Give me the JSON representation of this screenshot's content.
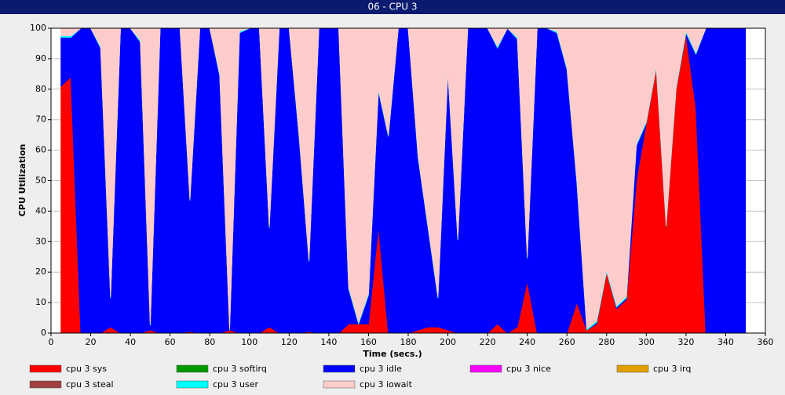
{
  "chart_data": {
    "type": "stacked_area",
    "title": "06 - CPU 3",
    "x_label": "Time (secs.)",
    "y_label": "CPU Utilization",
    "x": [
      5,
      10,
      15,
      20,
      25,
      30,
      35,
      40,
      45,
      50,
      55,
      60,
      65,
      70,
      75,
      80,
      85,
      90,
      95,
      100,
      105,
      110,
      115,
      120,
      125,
      130,
      135,
      140,
      145,
      150,
      155,
      160,
      165,
      170,
      175,
      180,
      185,
      190,
      195,
      200,
      205,
      210,
      215,
      220,
      225,
      230,
      235,
      240,
      245,
      250,
      255,
      260,
      265,
      270,
      275,
      280,
      285,
      290,
      295,
      300,
      305,
      310,
      315,
      320,
      325,
      330,
      335,
      340,
      345,
      350
    ],
    "xlim": [
      0,
      360
    ],
    "xticks": [
      0,
      20,
      40,
      60,
      80,
      100,
      120,
      140,
      160,
      180,
      200,
      220,
      240,
      260,
      280,
      300,
      320,
      340,
      360
    ],
    "ylim": [
      0,
      100
    ],
    "yticks": [
      0,
      10,
      20,
      30,
      40,
      50,
      60,
      70,
      80,
      90,
      100
    ],
    "grid": true,
    "series": [
      {
        "name": "cpu 3 sys",
        "color": "#ff0000",
        "values": [
          81,
          84,
          0,
          0,
          0,
          2,
          0,
          0,
          0,
          1,
          0,
          0,
          0,
          0.5,
          0,
          0,
          0,
          1,
          0,
          0,
          0,
          2,
          0,
          0,
          0,
          0.5,
          0,
          0,
          0,
          3,
          3,
          3,
          35,
          0,
          0,
          0,
          1,
          2,
          2,
          1,
          0,
          0,
          0,
          0,
          3,
          0,
          2,
          17,
          0,
          0,
          0,
          0,
          10,
          1,
          3,
          20,
          8,
          11,
          50,
          69,
          87,
          35,
          80,
          98,
          74,
          0,
          0,
          0,
          0,
          0
        ]
      },
      {
        "name": "cpu 3 softirq",
        "color": "#009900",
        "values": [
          0,
          0,
          0,
          0,
          0,
          0,
          0,
          0,
          0,
          0,
          0,
          0,
          0,
          0,
          0,
          0,
          0,
          0,
          0,
          0,
          0,
          0,
          0,
          0,
          0,
          0,
          0,
          0,
          0,
          0,
          0,
          0,
          0,
          0,
          0,
          0,
          0,
          0,
          0,
          0,
          0,
          0,
          0,
          0,
          0,
          0,
          0,
          0,
          0,
          0,
          0,
          0,
          0,
          0,
          0,
          0,
          0,
          0,
          0,
          0,
          0,
          0,
          0,
          0,
          0,
          0,
          0,
          0,
          0,
          0
        ]
      },
      {
        "name": "cpu 3 idle",
        "color": "#0000ff",
        "values": [
          16,
          13,
          100,
          100,
          93.5,
          9.5,
          100,
          100,
          95.5,
          1.5,
          100,
          100,
          100,
          43,
          100,
          100,
          84.5,
          0,
          98.5,
          100,
          100,
          32.5,
          100,
          100,
          64.5,
          23,
          100,
          100,
          100,
          11.5,
          0,
          9.5,
          44.5,
          64.5,
          100,
          100,
          56.5,
          32.5,
          9.5,
          84.5,
          30.5,
          100,
          100,
          100,
          90.5,
          100,
          94.5,
          7.5,
          100,
          100,
          98.5,
          86.5,
          39.5,
          0,
          0.5,
          0,
          0.5,
          0.5,
          11.5,
          0,
          0,
          0,
          0,
          0.5,
          17.5,
          100,
          100,
          100,
          100,
          100
        ]
      },
      {
        "name": "cpu 3 nice",
        "color": "#ff00ff",
        "values": [
          0,
          0,
          0,
          0,
          0,
          0,
          0,
          0,
          0,
          0,
          0,
          0,
          0,
          0,
          0,
          0,
          0,
          0,
          0,
          0,
          0,
          0,
          0,
          0,
          0,
          0,
          0,
          0,
          0,
          0,
          0,
          0,
          0,
          0,
          0,
          0,
          0,
          0,
          0,
          0,
          0,
          0,
          0,
          0,
          0,
          0,
          0,
          0,
          0,
          0,
          0,
          0,
          0,
          0,
          0,
          0,
          0,
          0,
          0,
          0,
          0,
          0,
          0,
          0,
          0,
          0,
          0,
          0,
          0,
          0
        ]
      },
      {
        "name": "cpu 3 irq",
        "color": "#e0a000",
        "values": [
          0,
          0,
          0,
          0,
          0,
          0,
          0,
          0,
          0,
          0,
          0,
          0,
          0,
          0,
          0,
          0,
          0,
          0,
          0,
          0,
          0,
          0,
          0,
          0,
          0,
          0,
          0,
          0,
          0,
          0,
          0,
          0,
          0,
          0,
          0,
          0,
          0,
          0,
          0,
          0,
          0,
          0,
          0,
          0,
          0,
          0,
          0,
          0,
          0,
          0,
          0,
          0,
          0,
          0,
          0,
          0,
          0,
          0,
          0,
          0,
          0,
          0,
          0,
          0,
          0,
          0,
          0,
          0,
          0,
          0
        ]
      },
      {
        "name": "cpu 3 steal",
        "color": "#a04040",
        "values": [
          0,
          0,
          0,
          0,
          0,
          0,
          0,
          0,
          0,
          0,
          0,
          0,
          0,
          0,
          0,
          0,
          0,
          0,
          0,
          0,
          0,
          0,
          0,
          0,
          0,
          0,
          0,
          0,
          0,
          0,
          0,
          0,
          0,
          0,
          0,
          0,
          0,
          0,
          0,
          0,
          0,
          0,
          0,
          0,
          0,
          0,
          0,
          0,
          0,
          0,
          0,
          0,
          0,
          0,
          0,
          0,
          0,
          0,
          0,
          0,
          0,
          0,
          0,
          0,
          0,
          0,
          0,
          0,
          0,
          0
        ]
      },
      {
        "name": "cpu 3 user",
        "color": "#00ffff",
        "values": [
          0.5,
          0.5,
          0,
          0,
          0.5,
          0.5,
          0,
          0,
          0.5,
          0.5,
          0,
          0,
          0,
          0.5,
          0,
          0,
          0.5,
          0.5,
          0.5,
          0,
          0,
          0.5,
          0,
          0,
          0.5,
          0.5,
          0,
          0,
          0,
          0.5,
          0.5,
          0.5,
          0.5,
          0.5,
          0,
          0,
          0.5,
          0.5,
          0.5,
          0.5,
          0.5,
          0,
          0,
          0,
          0.5,
          0,
          0.5,
          0.5,
          0,
          0,
          0.5,
          0.5,
          0.5,
          0.5,
          0.5,
          0.5,
          0.5,
          0.5,
          0.5,
          0.5,
          0.5,
          0.5,
          0.5,
          0.5,
          0.5,
          0,
          0,
          0,
          0,
          0
        ]
      },
      {
        "name": "cpu 3 iowait",
        "color": "#ffcccc",
        "values": [
          2.5,
          2.5,
          0,
          0,
          6,
          88,
          0,
          0,
          4,
          97,
          0,
          0,
          0,
          56,
          0,
          0,
          15,
          98.5,
          1,
          0,
          0,
          65,
          0,
          0,
          35,
          76,
          0,
          0,
          0,
          85,
          96.5,
          87,
          20,
          35,
          0,
          0,
          42,
          65,
          88,
          14,
          69,
          0,
          0,
          0,
          6,
          0,
          3,
          75,
          0,
          0,
          1,
          13,
          50,
          98.5,
          96,
          79.5,
          91,
          88,
          38,
          30.5,
          12.5,
          64.5,
          19.5,
          1,
          8,
          0,
          0,
          0,
          0,
          0
        ]
      }
    ]
  }
}
